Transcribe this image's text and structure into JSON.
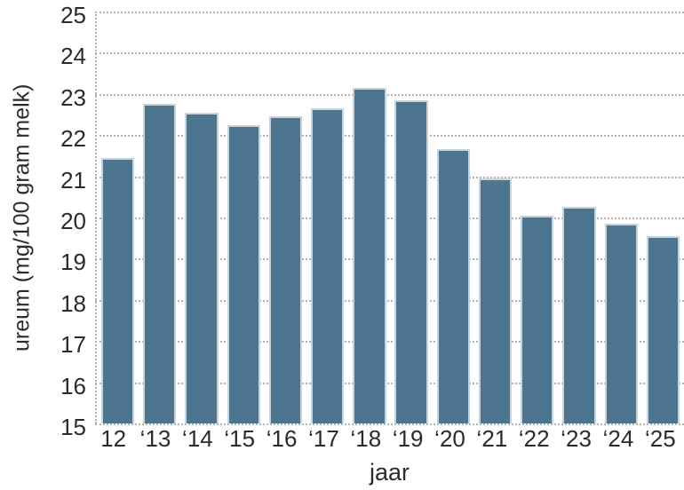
{
  "chart_data": {
    "type": "bar",
    "title": "",
    "xlabel": "jaar",
    "ylabel": "ureum (mg/100 gram melk)",
    "categories": [
      "12",
      "‘13",
      "‘14",
      "‘15",
      "‘16",
      "‘17",
      "‘18",
      "‘19",
      "‘20",
      "‘21",
      "‘22",
      "‘23",
      "‘24",
      "‘25"
    ],
    "values": [
      21.45,
      22.75,
      22.55,
      22.25,
      22.45,
      22.65,
      23.15,
      22.85,
      21.65,
      20.95,
      20.05,
      20.25,
      19.85,
      19.55
    ],
    "ylim": [
      15,
      25
    ],
    "ytick_step": 1,
    "yticks": [
      15,
      16,
      17,
      18,
      19,
      20,
      21,
      22,
      23,
      24,
      25
    ],
    "grid": "horizontal-dotted",
    "legend": "none",
    "colors": {
      "bar_fill": "#4d7590",
      "bar_border": "#c6d4dd",
      "gridline": "#b2b2b2",
      "text": "#2b2b2b",
      "background": "#ffffff"
    }
  }
}
